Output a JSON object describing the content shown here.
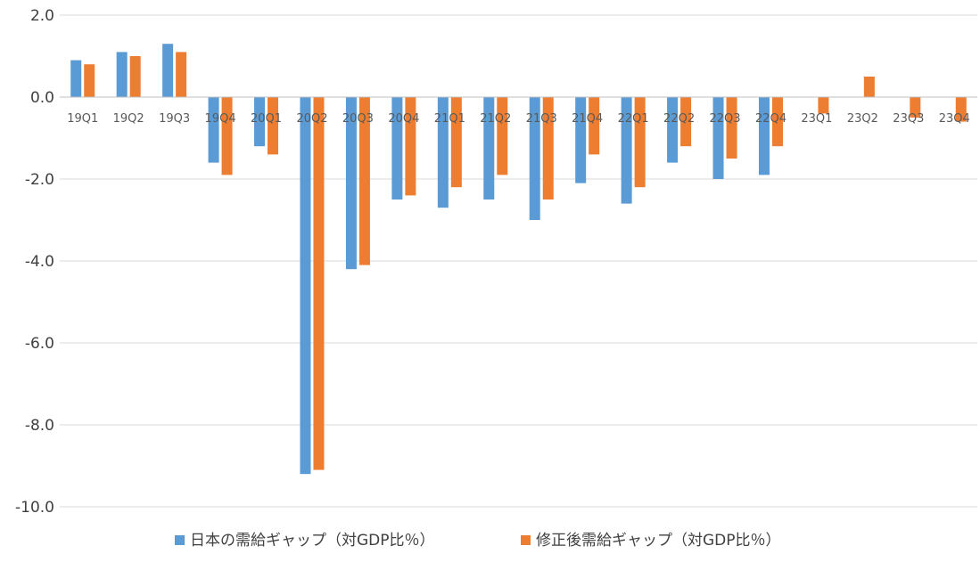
{
  "chart_data": {
    "type": "bar",
    "title": "",
    "xlabel": "",
    "ylabel": "",
    "ylim": [
      -10,
      2
    ],
    "yticks": [
      2,
      0,
      -2,
      -4,
      -6,
      -8,
      -10
    ],
    "ytick_labels": [
      "2.0",
      "0.0",
      "-2.0",
      "-4.0",
      "-6.0",
      "-8.0",
      "-10.0"
    ],
    "grid": true,
    "legend_position": "bottom",
    "categories": [
      "19Q1",
      "19Q2",
      "19Q3",
      "19Q4",
      "20Q1",
      "20Q2",
      "20Q3",
      "20Q4",
      "21Q1",
      "21Q2",
      "21Q3",
      "21Q4",
      "22Q1",
      "22Q2",
      "22Q3",
      "22Q4",
      "23Q1",
      "23Q2",
      "23Q3",
      "23Q4"
    ],
    "series": [
      {
        "name": "日本の需給ギャップ（対GDP比％）",
        "color": "#5b9bd5",
        "values": [
          0.9,
          1.1,
          1.3,
          -1.6,
          -1.2,
          -9.2,
          -4.2,
          -2.5,
          -2.7,
          -2.5,
          -3.0,
          -2.1,
          -2.6,
          -1.6,
          -2.0,
          -1.9,
          null,
          null,
          null,
          null
        ]
      },
      {
        "name": "修正後需給ギャップ（対GDP比％）",
        "color": "#ed7d31",
        "values": [
          0.8,
          1.0,
          1.1,
          -1.9,
          -1.4,
          -9.1,
          -4.1,
          -2.4,
          -2.2,
          -1.9,
          -2.5,
          -1.4,
          -2.2,
          -1.2,
          -1.5,
          -1.2,
          -0.4,
          0.5,
          -0.5,
          -0.6
        ]
      }
    ]
  }
}
